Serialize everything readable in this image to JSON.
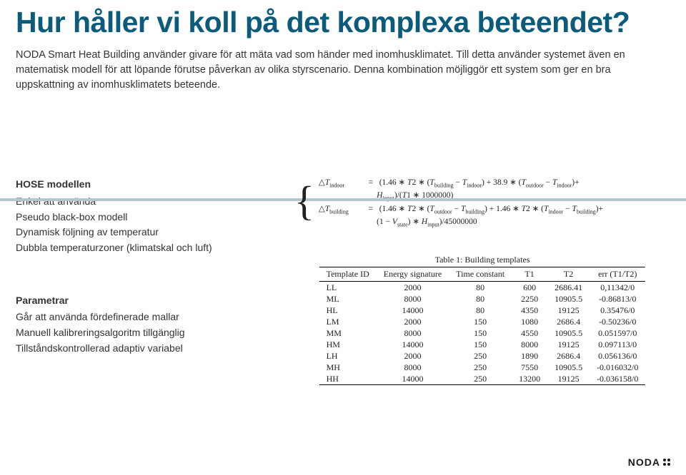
{
  "title": "Hur håller vi koll på det komplexa beteendet?",
  "intro": "NODA Smart Heat Building använder givare för att mäta vad som händer med inomhusklimatet. Till detta använder systemet även en matematisk modell för att löpande förutse påverkan av olika styrscenario. Denna kombination möjliggör ett system som ger en bra uppskattning av inomhusklimatets beteende.",
  "hose": {
    "heading": "HOSE modellen",
    "items": [
      "Enkel att använda",
      "Pseudo black-box modell",
      "Dynamisk följning av temperatur",
      "Dubbla temperaturzoner (klimatskal och luft)"
    ]
  },
  "params": {
    "heading": "Parametrar",
    "items": [
      "Går att använda fördefinerade mallar",
      "Manuell kalibreringsalgoritm tillgänglig",
      "Tillståndskontrollerad adaptiv variabel"
    ]
  },
  "equations": {
    "line1_label": "△T_indoor",
    "line1": "(1.46 ∗ T2 ∗ (T_building − T_indoor) + 38.9 ∗ (T_outdoor − T_indoor)+",
    "line2": "H_input)/(T1 ∗ 1000000)",
    "line3_label": "△T_building",
    "line3": "(1.46 ∗ T2 ∗ (T_outdoor − T_building) + 1.46 ∗ T2 ∗ (T_indoor − T_building)+",
    "line4": "(1 − V_state) ∗ H_input)/45000000"
  },
  "table": {
    "caption": "Table 1: Building templates",
    "columns": [
      "Template ID",
      "Energy signature",
      "Time constant",
      "T1",
      "T2",
      "err (T1/T2)"
    ],
    "rows": [
      [
        "LL",
        "2000",
        "80",
        "600",
        "2686.41",
        "0,11342/0"
      ],
      [
        "ML",
        "8000",
        "80",
        "2250",
        "10905.5",
        "-0.86813/0"
      ],
      [
        "HL",
        "14000",
        "80",
        "4350",
        "19125",
        "0.35476/0"
      ],
      [
        "LM",
        "2000",
        "150",
        "1080",
        "2686.4",
        "-0.50236/0"
      ],
      [
        "MM",
        "8000",
        "150",
        "4550",
        "10905.5",
        "0.051597/0"
      ],
      [
        "HM",
        "14000",
        "150",
        "8000",
        "19125",
        "0.097113/0"
      ],
      [
        "LH",
        "2000",
        "250",
        "1890",
        "2686.4",
        "0.056136/0"
      ],
      [
        "MH",
        "8000",
        "250",
        "7550",
        "10905.5",
        "-0.016032/0"
      ],
      [
        "HH",
        "14000",
        "250",
        "13200",
        "19125",
        "-0.036158/0"
      ]
    ]
  },
  "logo": "NODA"
}
